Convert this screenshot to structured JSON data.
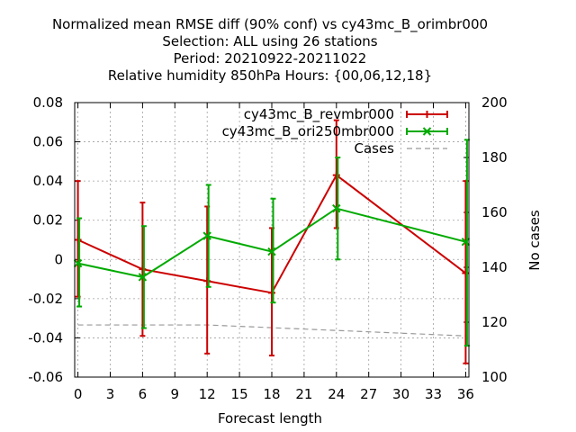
{
  "chart_data": {
    "type": "line",
    "title_lines": [
      "Normalized mean RMSE diff (90% conf) vs cy43mc_B_orimbr000",
      "Selection: ALL using    26 stations",
      "Period: 20210922-20211022",
      "Relative humidity 850hPa   Hours: {00,06,12,18}"
    ],
    "xlabel": "Forecast length",
    "ylabel": "",
    "y2label": "No cases",
    "xlim": [
      -0.3,
      36.3
    ],
    "ylim": [
      -0.06,
      0.08
    ],
    "y2lim": [
      100,
      200
    ],
    "xticks": [
      0,
      3,
      6,
      9,
      12,
      15,
      18,
      21,
      24,
      27,
      30,
      33,
      36
    ],
    "yticks": [
      -0.06,
      -0.04,
      -0.02,
      0,
      0.02,
      0.04,
      0.06,
      0.08
    ],
    "yticklabels": [
      "-0.06",
      "-0.04",
      "-0.02",
      "0",
      "0.02",
      "0.04",
      "0.06",
      "0.08"
    ],
    "y2ticks": [
      100,
      120,
      140,
      160,
      180,
      200
    ],
    "grid": true,
    "legend_position": "top-right",
    "series": [
      {
        "name": "cy43mc_B_revmbr000",
        "color": "#cc0000",
        "marker": "plus",
        "x": [
          0,
          6,
          12,
          18,
          24,
          36
        ],
        "y": [
          0.01,
          -0.005,
          -0.011,
          -0.017,
          0.043,
          -0.007
        ],
        "err_low": [
          -0.019,
          -0.039,
          -0.048,
          -0.049,
          0.016,
          -0.053
        ],
        "err_high": [
          0.04,
          0.029,
          0.027,
          0.016,
          0.071,
          0.04
        ]
      },
      {
        "name": "cy43mc_B_ori250mbr000",
        "color": "#00aa00",
        "marker": "x",
        "x": [
          0,
          6,
          12,
          18,
          24,
          36
        ],
        "y": [
          -0.002,
          -0.009,
          0.012,
          0.004,
          0.026,
          0.009
        ],
        "err_low": [
          -0.024,
          -0.035,
          -0.014,
          -0.022,
          0.0,
          -0.044
        ],
        "err_high": [
          0.021,
          0.017,
          0.038,
          0.031,
          0.052,
          0.061
        ]
      },
      {
        "name": "Cases",
        "color": "#999999",
        "marker": "none",
        "axis": "y2",
        "x": [
          0,
          6,
          12,
          18,
          24,
          30,
          36
        ],
        "y": [
          119,
          119,
          119,
          118,
          117,
          116,
          115
        ]
      }
    ]
  }
}
